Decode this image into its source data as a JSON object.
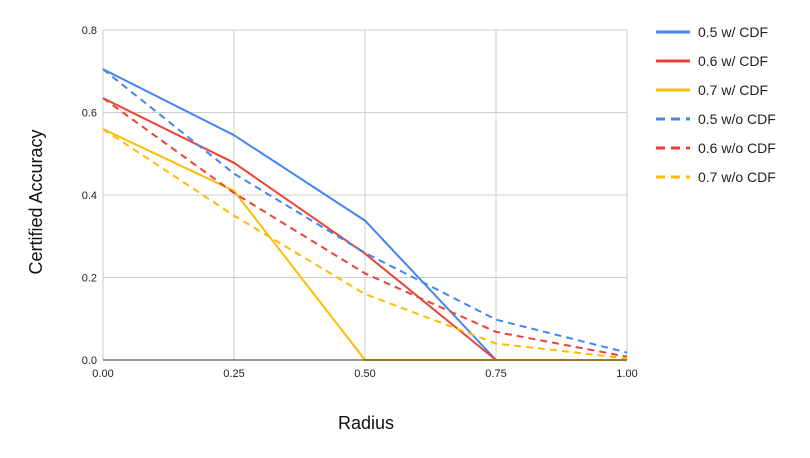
{
  "chart_data": {
    "type": "line",
    "title": "",
    "xlabel": "Radius",
    "ylabel": "Certified Accuracy",
    "x": [
      0.0,
      0.25,
      0.5,
      0.75,
      1.0
    ],
    "x_tick_labels": [
      "0.00",
      "0.25",
      "0.50",
      "0.75",
      "1.00"
    ],
    "y_ticks": [
      0.0,
      0.2,
      0.4,
      0.6,
      0.8
    ],
    "y_tick_labels": [
      "0.0",
      "0.2",
      "0.4",
      "0.6",
      "0.8"
    ],
    "xlim": [
      0.0,
      1.0
    ],
    "ylim": [
      0.0,
      0.8
    ],
    "grid": true,
    "legend_position": "right",
    "series": [
      {
        "name": "0.5 w/ CDF",
        "color": "#4285f4",
        "dashed": false,
        "values": [
          0.705,
          0.545,
          0.338,
          0.0,
          0.0
        ]
      },
      {
        "name": "0.6 w/ CDF",
        "color": "#ea4335",
        "dashed": false,
        "values": [
          0.635,
          0.478,
          0.258,
          0.0,
          0.0
        ]
      },
      {
        "name": "0.7 w/ CDF",
        "color": "#fbbc04",
        "dashed": false,
        "values": [
          0.56,
          0.41,
          0.0,
          0.0,
          0.0
        ]
      },
      {
        "name": "0.5 w/o CDF",
        "color": "#4285f4",
        "dashed": true,
        "values": [
          0.705,
          0.452,
          0.26,
          0.098,
          0.018
        ]
      },
      {
        "name": "0.6 w/o CDF",
        "color": "#ea4335",
        "dashed": true,
        "values": [
          0.635,
          0.405,
          0.21,
          0.068,
          0.008
        ]
      },
      {
        "name": "0.7 w/o CDF",
        "color": "#fbbc04",
        "dashed": true,
        "values": [
          0.56,
          0.35,
          0.16,
          0.04,
          0.004
        ]
      }
    ]
  }
}
